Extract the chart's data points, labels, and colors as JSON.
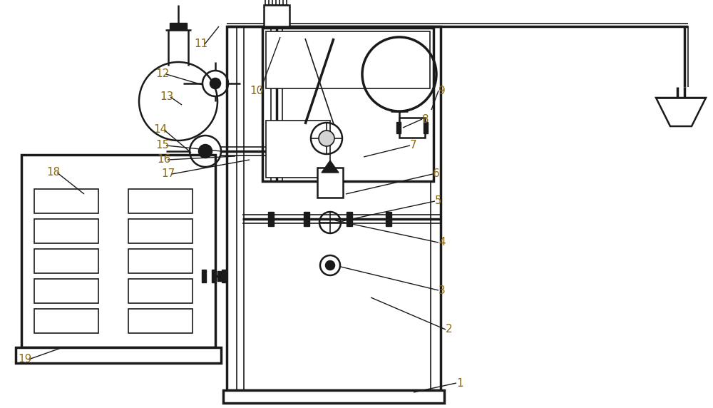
{
  "bg_color": "#ffffff",
  "line_color": "#1a1a1a",
  "label_color": "#8B6914",
  "lw": 1.8,
  "lw2": 1.2,
  "lw3": 2.5,
  "fig_width": 10.0,
  "fig_height": 5.72
}
